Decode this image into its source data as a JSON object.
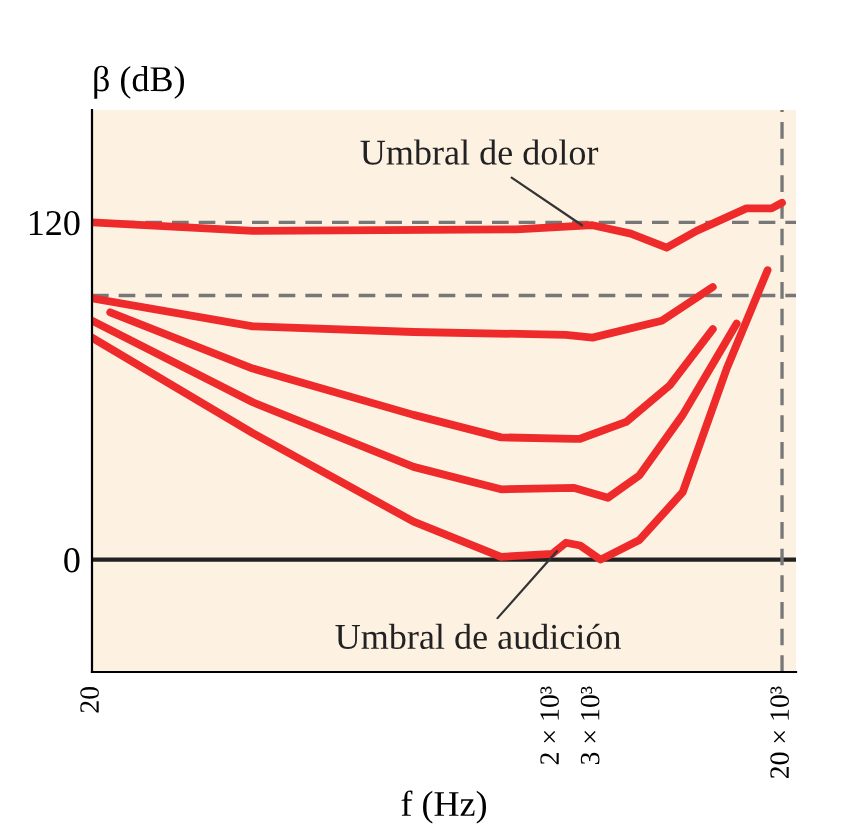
{
  "chart_data": {
    "type": "line",
    "xlabel": "f (Hz)",
    "ylabel": "β (dB)",
    "series": [
      {
        "color": "#ee2a2a",
        "x": [
          20,
          100,
          1400,
          3000,
          4400,
          6300,
          8500,
          14000,
          18000,
          20000
        ],
        "values": [
          120,
          117,
          117.5,
          119,
          116,
          111,
          117,
          125,
          125,
          127
        ]
      },
      {
        "color": "#ee2a2a",
        "x": [
          20,
          100,
          500,
          2300,
          3000,
          6000,
          10000
        ],
        "values": [
          93,
          83,
          81,
          80,
          79,
          85,
          97
        ]
      },
      {
        "color": "#ee2a2a",
        "x": [
          24,
          100,
          500,
          1200,
          2500,
          2650,
          4200,
          6500,
          10000
        ],
        "values": [
          88,
          68,
          51.5,
          43.5,
          43,
          43,
          49,
          62,
          82
        ]
      },
      {
        "color": "#ee2a2a",
        "x": [
          20,
          100,
          500,
          1200,
          2500,
          3500,
          4800,
          7400,
          12700
        ],
        "values": [
          85,
          56,
          33,
          25,
          25.5,
          22,
          30,
          51.5,
          84
        ]
      },
      {
        "color": "#ee2a2a",
        "x": [
          20,
          100,
          500,
          1200,
          2000,
          2300,
          2650,
          3250,
          4800,
          7400,
          11500,
          17300
        ],
        "values": [
          79,
          45,
          13.5,
          1,
          2,
          6,
          5,
          0,
          7,
          24,
          68,
          103
        ]
      }
    ],
    "annotations": [
      {
        "text": "Umbral de dolor",
        "x": 2700,
        "y": 119
      },
      {
        "text": "Umbral de audición",
        "x": 2100,
        "y": 3
      }
    ],
    "ref_lines": [
      {
        "axis": "y",
        "value": 0,
        "line_style": "solid",
        "color": "#222222"
      },
      {
        "axis": "y",
        "value": 120,
        "line_style": "dashed",
        "color": "#777777"
      },
      {
        "axis": "y",
        "value": 94,
        "line_style": "dashed",
        "color": "#777777"
      },
      {
        "axis": "x",
        "value": 20000,
        "line_style": "dashed",
        "color": "#777777"
      }
    ],
    "xlim": [
      20,
      23000
    ],
    "ylim": [
      -40,
      160
    ],
    "xticks": [
      20,
      {
        "value": 2000,
        "label": "2 × 10³"
      },
      {
        "value": 3000,
        "label": "3 × 10³"
      },
      {
        "value": 20000,
        "label": "20 × 10³"
      }
    ],
    "yticks": [
      0,
      120
    ],
    "log": "x",
    "grid": false,
    "legend": false,
    "marker": "none",
    "line_style": "solid"
  }
}
